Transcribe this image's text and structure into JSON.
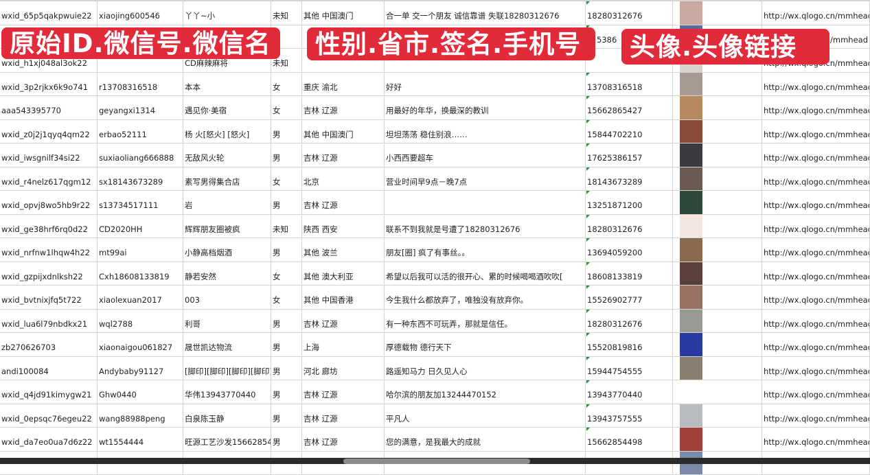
{
  "overlay_labels": [
    "原始ID.微信号.微信名",
    "性别.省市.签名.手机号",
    "头像.头像链接"
  ],
  "colors": {
    "label_bg": "#e12a3a",
    "grid": "#d4d4d4",
    "comment_marker": "#2e8b3a"
  },
  "rows": [
    {
      "id": "wxid_65p5qakpwuie22",
      "wechat": "xiaojing600546",
      "name": "丫丫~小",
      "gender": "未知",
      "region": "其他 中国澳门",
      "signature": "合一单 交一个朋友 诚信靠谱 失联18280312676",
      "phone": "18280312676",
      "avatar_color": "#c9a9a0",
      "url": "http://wx.qlogo.cn/mmhead"
    },
    {
      "id": "",
      "wechat": "",
      "name": "",
      "gender": "",
      "region": "",
      "signature": "",
      "phone": "5386",
      "avatar_color": "#5a6a9a",
      "url": "/mmhead"
    },
    {
      "id": "wxid_h1xj048al3ok22",
      "wechat": "",
      "name": "CD麻辣麻将",
      "gender": "未知",
      "region": "",
      "signature": "",
      "phone": "",
      "avatar_color": "#d8d2cc",
      "url": "http://wx.qlogo.cn/mmhead"
    },
    {
      "id": "wxid_3p2rjkx6k9o741",
      "wechat": "r13708316518",
      "name": "本本",
      "gender": "女",
      "region": "重庆 渝北",
      "signature": "好好",
      "phone": "13708316518",
      "avatar_color": "#a89a90",
      "url": "http://wx.qlogo.cn/mmhead"
    },
    {
      "id": "aaa543395770",
      "wechat": "geyangxi1314",
      "name": "遇见你·美宿",
      "gender": "女",
      "region": "吉林 辽源",
      "signature": "用最好的年华，换最深的教训",
      "phone": "15662865427",
      "avatar_color": "#b58a60",
      "url": "http://wx.qlogo.cn/mmhead"
    },
    {
      "id": "wxid_z0j2j1qyq4qm22",
      "wechat": "erbao52111",
      "name": "杨 火[怒火] [怒火]",
      "gender": "男",
      "region": "其他 中国澳门",
      "signature": "坦坦荡荡 稳住别浪……",
      "phone": "15844702210",
      "avatar_color": "#8a4a3a",
      "url": "http://wx.qlogo.cn/mmhead"
    },
    {
      "id": "wxid_iwsgnilf34si22",
      "wechat": "suxiaoliang666888",
      "name": "无敌风火轮",
      "gender": "男",
      "region": "吉林 辽源",
      "signature": "小西西要超车",
      "phone": "17625386157",
      "avatar_color": "#3a3a40",
      "url": "http://wx.qlogo.cn/mmhead"
    },
    {
      "id": "wxid_r4nelz617qgm12",
      "wechat": "sx18143673289",
      "name": "素写男得集合店",
      "gender": "女",
      "region": "北京",
      "signature": "营业时间早9点－晚7点",
      "phone": "18143673289",
      "avatar_color": "#6a5a50",
      "url": "http://wx.qlogo.cn/mmhead"
    },
    {
      "id": "wxid_opvj8wo5hb9r22",
      "wechat": "s13734517111",
      "name": "岩",
      "gender": "男",
      "region": "吉林 辽源",
      "signature": "",
      "phone": "13251871200",
      "avatar_color": "#2f4a3a",
      "url": "http://wx.qlogo.cn/mmhead"
    },
    {
      "id": "wxid_ge38hrf6rq0d22",
      "wechat": "CD2020HH",
      "name": "辉辉朋友圈被疯",
      "gender": "未知",
      "region": "陕西 西安",
      "signature": "联系不到我就是号遭了18280312676",
      "phone": "18280312676",
      "avatar_color": "#f3e6e0",
      "url": "http://wx.qlogo.cn/mmhead"
    },
    {
      "id": "wxid_nrfnw1lhqw4h22",
      "wechat": "mt99ai",
      "name": "小静高档烟酒",
      "gender": "男",
      "region": "其他 波兰",
      "signature": "朋友[圈] 疯了有事丝。。",
      "phone": "13694059200",
      "avatar_color": "#8a6a50",
      "url": "http://wx.qlogo.cn/mmhead"
    },
    {
      "id": "wxid_gzpijxdnlksh22",
      "wechat": "Cxh18608133819",
      "name": "静若安然",
      "gender": "女",
      "region": "其他 澳大利亚",
      "signature": "希望以后我可以活的很开心、累的时候喝喝酒吹吹[",
      "phone": "18608133819",
      "avatar_color": "#5a4038",
      "url": "http://wx.qlogo.cn/mmhead"
    },
    {
      "id": "wxid_bvtnixjfq5t722",
      "wechat": "xiaolexuan2017",
      "name": "003",
      "gender": "女",
      "region": "其他 中国香港",
      "signature": "今生我什么都放弃了，唯独没有放弃你。",
      "phone": "15526902777",
      "avatar_color": "#9a7060",
      "url": "http://wx.qlogo.cn/mmhead"
    },
    {
      "id": "wxid_lua6l79nbdkx21",
      "wechat": "wql2788",
      "name": "利哥",
      "gender": "男",
      "region": "吉林 辽源",
      "signature": "有一种东西不可玩弄，那就是信任。",
      "phone": "18280312676",
      "avatar_color": "#9a9a94",
      "url": "http://wx.qlogo.cn/mmhead"
    },
    {
      "id": "zb270626703",
      "wechat": "xiaonaigou061827",
      "name": "晟世凯达物流",
      "gender": "男",
      "region": "上海",
      "signature": "厚德载物 德行天下",
      "phone": "15520819816",
      "avatar_color": "#2a3aa0",
      "url": "http://wx.qlogo.cn/mmhead"
    },
    {
      "id": "andi100084",
      "wechat": "Andybaby91127",
      "name": "[脚印][脚印][脚印][脚印]",
      "gender": "男",
      "region": "河北 廊坊",
      "signature": "路遥知马力 日久见人心",
      "phone": "15944754555",
      "avatar_color": "#8a8070",
      "url": "http://wx.qlogo.cn/mmhead"
    },
    {
      "id": "wxid_q4jd91kimygw21",
      "wechat": "Ghw0440",
      "name": "华伟13943770440",
      "gender": "男",
      "region": "吉林 辽源",
      "signature": "哈尔滨的朋友加13244470152",
      "phone": "13943770440",
      "avatar_color": "#ffffff",
      "url": "http://wx.qlogo.cn/mmhead"
    },
    {
      "id": "wxid_0epsqc76egeu22",
      "wechat": "wang88988peng",
      "name": "白泉陈玉静",
      "gender": "男",
      "region": "吉林 辽源",
      "signature": "平凡人",
      "phone": "13943757555",
      "avatar_color": "#b8bcc0",
      "url": "http://wx.qlogo.cn/mmhead"
    },
    {
      "id": "wxid_da7eo0ua7d6z22",
      "wechat": "wt1554444",
      "name": "旺源工艺沙发15662854",
      "gender": "男",
      "region": "吉林 辽源",
      "signature": "您的满意，是我最大的成就",
      "phone": "15662854498",
      "avatar_color": "#a04038",
      "url": "http://wx.qlogo.cn/mmhead"
    },
    {
      "id": "",
      "wechat": "",
      "name": "",
      "gender": "",
      "region": "",
      "signature": "",
      "phone": "",
      "avatar_color": "#7a8aa8",
      "url": ""
    }
  ]
}
